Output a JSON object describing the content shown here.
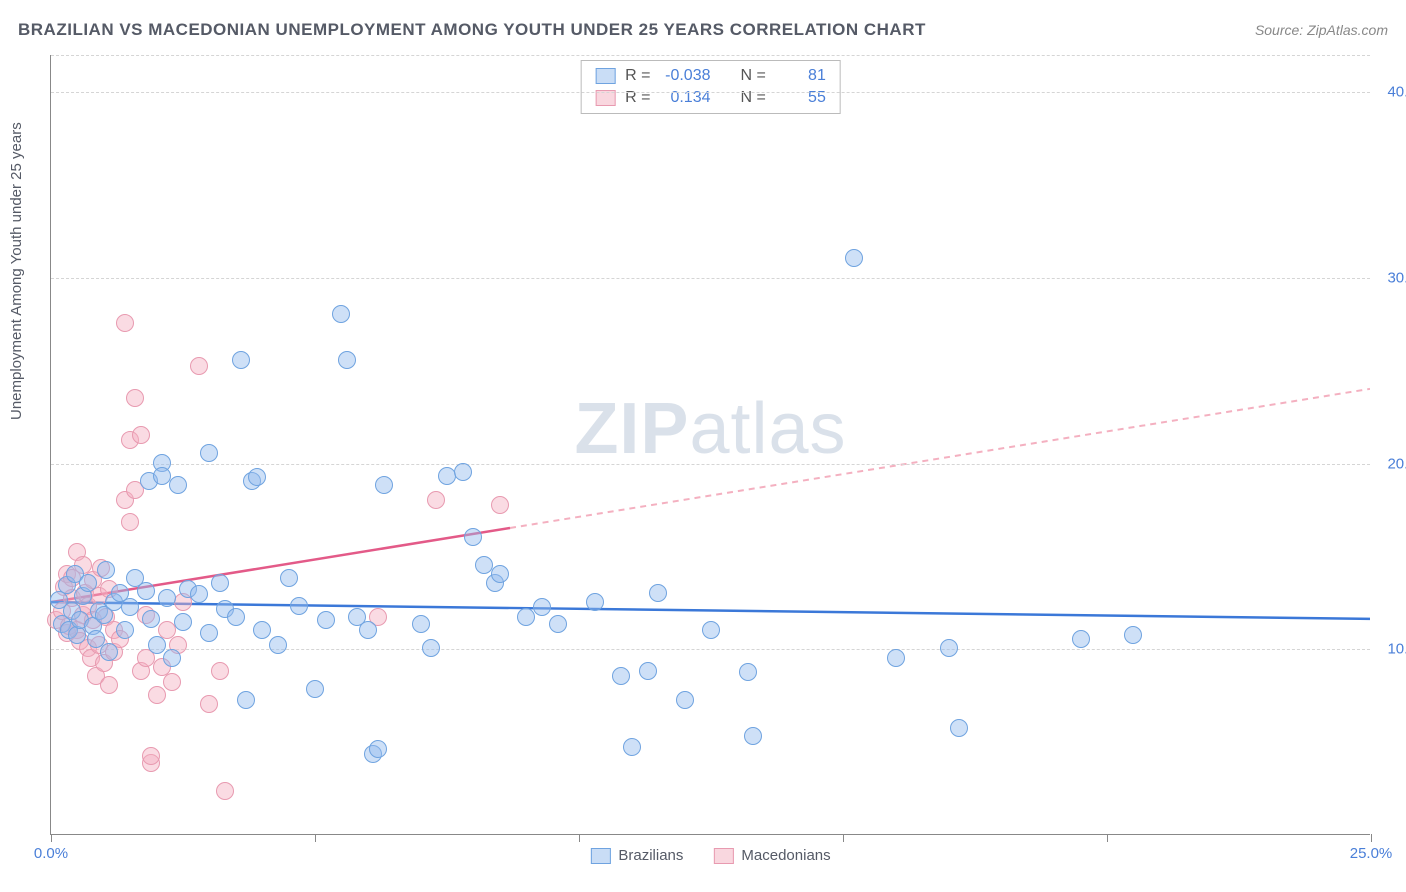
{
  "header": {
    "title": "BRAZILIAN VS MACEDONIAN UNEMPLOYMENT AMONG YOUTH UNDER 25 YEARS CORRELATION CHART",
    "source": "Source: ZipAtlas.com"
  },
  "watermark": {
    "zip": "ZIP",
    "atlas": "atlas"
  },
  "axes": {
    "ylabel": "Unemployment Among Youth under 25 years",
    "xlim": [
      0,
      25
    ],
    "ylim": [
      0,
      42
    ],
    "gridlines_y": [
      10,
      20,
      30,
      40
    ],
    "ytick_labels": {
      "10": "10.0%",
      "20": "20.0%",
      "30": "30.0%",
      "40": "40.0%"
    },
    "xticks": [
      0,
      5,
      10,
      15,
      20,
      25
    ],
    "xtick_labels": {
      "0": "0.0%",
      "25": "25.0%"
    },
    "grid_color": "#d5d5d5",
    "background_color": "#ffffff"
  },
  "stats": {
    "rows": [
      {
        "swatch": "blue",
        "r_label": "R =",
        "r": "-0.038",
        "n_label": "N =",
        "n": "81"
      },
      {
        "swatch": "pink",
        "r_label": "R =",
        "r": "0.134",
        "n_label": "N =",
        "n": "55"
      }
    ]
  },
  "legend": {
    "items": [
      {
        "swatch": "blue",
        "label": "Brazilians"
      },
      {
        "swatch": "pink",
        "label": "Macedonians"
      }
    ]
  },
  "series": {
    "blue": {
      "color_fill": "rgba(147,187,237,0.45)",
      "color_stroke": "#6fa3e0",
      "trend": {
        "x1": 0,
        "y1": 12.5,
        "x2": 25,
        "y2": 11.6,
        "stroke": "#3b78d8",
        "width": 2.5,
        "dash": "none"
      },
      "points": [
        [
          0.15,
          12.6
        ],
        [
          0.2,
          11.3
        ],
        [
          0.3,
          13.4
        ],
        [
          0.35,
          11.0
        ],
        [
          0.4,
          12.0
        ],
        [
          0.45,
          14.0
        ],
        [
          0.5,
          10.7
        ],
        [
          0.55,
          11.5
        ],
        [
          0.6,
          12.8
        ],
        [
          0.7,
          13.5
        ],
        [
          0.8,
          11.2
        ],
        [
          0.85,
          10.5
        ],
        [
          0.9,
          12.0
        ],
        [
          1.0,
          11.8
        ],
        [
          1.05,
          14.2
        ],
        [
          1.1,
          9.8
        ],
        [
          1.2,
          12.5
        ],
        [
          1.3,
          13.0
        ],
        [
          1.4,
          11.0
        ],
        [
          1.5,
          12.2
        ],
        [
          1.6,
          13.8
        ],
        [
          1.8,
          13.1
        ],
        [
          1.85,
          19.0
        ],
        [
          1.9,
          11.6
        ],
        [
          2.0,
          10.2
        ],
        [
          2.1,
          20.0
        ],
        [
          2.1,
          19.3
        ],
        [
          2.2,
          12.7
        ],
        [
          2.3,
          9.5
        ],
        [
          2.4,
          18.8
        ],
        [
          2.5,
          11.4
        ],
        [
          2.6,
          13.2
        ],
        [
          2.8,
          12.9
        ],
        [
          3.0,
          10.8
        ],
        [
          3.0,
          20.5
        ],
        [
          3.2,
          13.5
        ],
        [
          3.3,
          12.1
        ],
        [
          3.5,
          11.7
        ],
        [
          3.6,
          25.5
        ],
        [
          3.7,
          7.2
        ],
        [
          3.8,
          19.0
        ],
        [
          3.9,
          19.2
        ],
        [
          4.0,
          11.0
        ],
        [
          4.3,
          10.2
        ],
        [
          4.5,
          13.8
        ],
        [
          4.7,
          12.3
        ],
        [
          5.0,
          7.8
        ],
        [
          5.2,
          11.5
        ],
        [
          5.5,
          28.0
        ],
        [
          5.6,
          25.5
        ],
        [
          5.8,
          11.7
        ],
        [
          6.0,
          11.0
        ],
        [
          6.1,
          4.3
        ],
        [
          6.2,
          4.6
        ],
        [
          6.3,
          18.8
        ],
        [
          7.0,
          11.3
        ],
        [
          7.2,
          10.0
        ],
        [
          7.5,
          19.3
        ],
        [
          7.8,
          19.5
        ],
        [
          8.0,
          16.0
        ],
        [
          8.2,
          14.5
        ],
        [
          8.4,
          13.5
        ],
        [
          8.5,
          14.0
        ],
        [
          9.0,
          11.7
        ],
        [
          9.3,
          12.2
        ],
        [
          9.6,
          11.3
        ],
        [
          10.3,
          12.5
        ],
        [
          10.8,
          8.5
        ],
        [
          11.0,
          4.7
        ],
        [
          11.3,
          8.8
        ],
        [
          11.5,
          13.0
        ],
        [
          12.0,
          7.2
        ],
        [
          12.5,
          11.0
        ],
        [
          13.2,
          8.7
        ],
        [
          13.3,
          5.3
        ],
        [
          15.2,
          31.0
        ],
        [
          16.0,
          9.5
        ],
        [
          17.0,
          10.0
        ],
        [
          17.2,
          5.7
        ],
        [
          19.5,
          10.5
        ],
        [
          20.5,
          10.7
        ]
      ]
    },
    "pink": {
      "color_fill": "rgba(244,176,192,0.45)",
      "color_stroke": "#e89ab0",
      "trend_solid": {
        "x1": 0,
        "y1": 12.5,
        "x2": 8.7,
        "y2": 16.5,
        "stroke": "#e35a88",
        "width": 2.5
      },
      "trend_dash": {
        "x1": 8.7,
        "y1": 16.5,
        "x2": 25,
        "y2": 24.0,
        "stroke": "#f4b0c0",
        "width": 2,
        "dash": "6 5"
      },
      "points": [
        [
          0.1,
          11.5
        ],
        [
          0.2,
          12.0
        ],
        [
          0.25,
          13.3
        ],
        [
          0.3,
          10.8
        ],
        [
          0.3,
          14.0
        ],
        [
          0.35,
          11.2
        ],
        [
          0.4,
          12.7
        ],
        [
          0.4,
          13.8
        ],
        [
          0.5,
          11.0
        ],
        [
          0.5,
          15.2
        ],
        [
          0.55,
          10.4
        ],
        [
          0.6,
          11.8
        ],
        [
          0.6,
          14.5
        ],
        [
          0.65,
          13.0
        ],
        [
          0.7,
          10.0
        ],
        [
          0.7,
          12.3
        ],
        [
          0.75,
          9.5
        ],
        [
          0.8,
          11.5
        ],
        [
          0.8,
          13.7
        ],
        [
          0.85,
          8.5
        ],
        [
          0.9,
          10.2
        ],
        [
          0.9,
          12.8
        ],
        [
          0.95,
          14.3
        ],
        [
          1.0,
          9.2
        ],
        [
          1.05,
          11.7
        ],
        [
          1.1,
          8.0
        ],
        [
          1.1,
          13.2
        ],
        [
          1.2,
          9.8
        ],
        [
          1.2,
          11.0
        ],
        [
          1.3,
          10.5
        ],
        [
          1.4,
          18.0
        ],
        [
          1.4,
          27.5
        ],
        [
          1.5,
          16.8
        ],
        [
          1.5,
          21.2
        ],
        [
          1.6,
          18.5
        ],
        [
          1.6,
          23.5
        ],
        [
          1.7,
          21.5
        ],
        [
          1.7,
          8.8
        ],
        [
          1.8,
          9.5
        ],
        [
          1.8,
          11.8
        ],
        [
          1.9,
          3.8
        ],
        [
          1.9,
          4.2
        ],
        [
          2.0,
          7.5
        ],
        [
          2.1,
          9.0
        ],
        [
          2.2,
          11.0
        ],
        [
          2.3,
          8.2
        ],
        [
          2.4,
          10.2
        ],
        [
          2.5,
          12.5
        ],
        [
          2.8,
          25.2
        ],
        [
          3.0,
          7.0
        ],
        [
          3.2,
          8.8
        ],
        [
          3.3,
          2.3
        ],
        [
          6.2,
          11.7
        ],
        [
          7.3,
          18.0
        ],
        [
          8.5,
          17.7
        ]
      ]
    }
  }
}
